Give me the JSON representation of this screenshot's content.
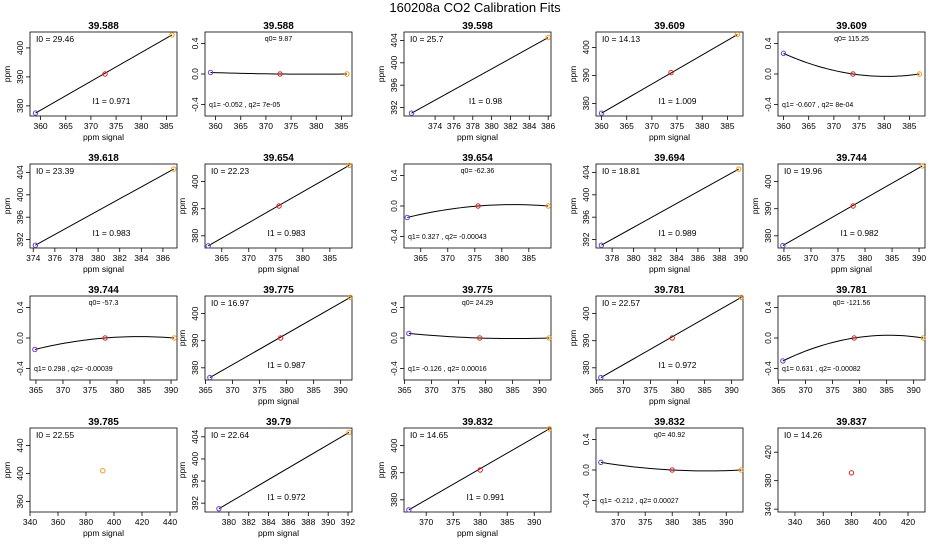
{
  "title": "160208a   CO2 Calibration Fits",
  "colors": {
    "axis": "#000000",
    "line": "#000000",
    "low": "#6a3fcf",
    "mid": "#e0201c",
    "high": "#f09a1a"
  },
  "chart_data": [
    {
      "type": "line",
      "panel_title": "39.588",
      "xlabel": "ppm signal",
      "ylabel": "ppm",
      "fit": "linear",
      "xlim": [
        357.9,
        387.1
      ],
      "ylim": [
        376.5,
        405.5
      ],
      "xticks": [
        "360",
        "365",
        "370",
        "375",
        "380",
        "385"
      ],
      "yticks": [
        "380",
        "390",
        "400"
      ],
      "points": [
        {
          "x": 359.0,
          "y": 377.5,
          "role": "low"
        },
        {
          "x": 372.8,
          "y": 391.0,
          "role": "mid"
        },
        {
          "x": 386.1,
          "y": 404.5,
          "role": "high"
        }
      ],
      "annotations": [
        {
          "text": "I0 =  29.46",
          "pos": "top-left"
        },
        {
          "text": "I1 =  0.971",
          "pos": "bottom-center"
        }
      ]
    },
    {
      "type": "line",
      "panel_title": "39.588",
      "xlabel": "",
      "ylabel": "",
      "fit": "curve",
      "xlim": [
        357.9,
        387.1
      ],
      "ylim": [
        -0.55,
        0.55
      ],
      "xticks": [
        "360",
        "365",
        "370",
        "375",
        "380",
        "385"
      ],
      "yticks": [
        "-0.4",
        "0.0",
        "0.4"
      ],
      "points": [
        {
          "x": 359.0,
          "y": 0.02,
          "role": "low"
        },
        {
          "x": 372.8,
          "y": 0.0,
          "role": "mid"
        },
        {
          "x": 386.1,
          "y": 0.0,
          "role": "high"
        }
      ],
      "annotations": [
        {
          "text": "q0=  9.87",
          "pos": "top-center"
        },
        {
          "text": "q1=  -0.052  ,  q2=  7e-05",
          "pos": "bottom-left"
        }
      ]
    },
    {
      "type": "line",
      "panel_title": "39.598",
      "xlabel": "ppm signal",
      "ylabel": "ppm",
      "fit": "linear",
      "xlim": [
        370.7,
        386.3
      ],
      "ylim": [
        390.5,
        405.5
      ],
      "xticks": [
        "374",
        "376",
        "378",
        "380",
        "382",
        "384",
        "386"
      ],
      "yticks": [
        "392",
        "396",
        "400",
        "404"
      ],
      "points": [
        {
          "x": 371.5,
          "y": 391.0,
          "role": "low"
        },
        {
          "x": 386.0,
          "y": 404.5,
          "role": "high"
        }
      ],
      "annotations": [
        {
          "text": "I0 =  25.7",
          "pos": "top-left"
        },
        {
          "text": "I1 =  0.98",
          "pos": "bottom-center"
        }
      ]
    },
    {
      "type": "line",
      "panel_title": "39.609",
      "xlabel": "ppm signal",
      "ylabel": "ppm",
      "fit": "linear",
      "xlim": [
        358.9,
        388.1
      ],
      "ylim": [
        375.5,
        405.5
      ],
      "xticks": [
        "360",
        "365",
        "370",
        "375",
        "380",
        "385"
      ],
      "yticks": [
        "380",
        "390",
        "400"
      ],
      "points": [
        {
          "x": 360.0,
          "y": 376.5,
          "role": "low"
        },
        {
          "x": 373.8,
          "y": 391.0,
          "role": "mid"
        },
        {
          "x": 387.0,
          "y": 404.6,
          "role": "high"
        }
      ],
      "annotations": [
        {
          "text": "I0 =  14.13",
          "pos": "top-left"
        },
        {
          "text": "I1 =  1.009",
          "pos": "bottom-center"
        }
      ]
    },
    {
      "type": "line",
      "panel_title": "39.609",
      "xlabel": "",
      "ylabel": "",
      "fit": "curve",
      "xlim": [
        358.9,
        388.1
      ],
      "ylim": [
        -0.55,
        0.55
      ],
      "xticks": [
        "360",
        "365",
        "370",
        "375",
        "380",
        "385"
      ],
      "yticks": [
        "-0.4",
        "0.0",
        "0.4"
      ],
      "points": [
        {
          "x": 360.0,
          "y": 0.27,
          "role": "low"
        },
        {
          "x": 373.8,
          "y": 0.0,
          "role": "mid"
        },
        {
          "x": 387.0,
          "y": 0.0,
          "role": "high"
        }
      ],
      "annotations": [
        {
          "text": "q0=  115.25",
          "pos": "top-center"
        },
        {
          "text": "q1=  -0.607  ,  q2=  8e-04",
          "pos": "bottom-left"
        }
      ]
    },
    {
      "type": "line",
      "panel_title": "39.618",
      "xlabel": "ppm signal",
      "ylabel": "ppm",
      "fit": "linear",
      "xlim": [
        373.7,
        387.3
      ],
      "ylim": [
        390.5,
        405.5
      ],
      "xticks": [
        "374",
        "376",
        "378",
        "380",
        "382",
        "384",
        "386"
      ],
      "yticks": [
        "392",
        "396",
        "400",
        "404"
      ],
      "points": [
        {
          "x": 374.2,
          "y": 391.0,
          "role": "low"
        },
        {
          "x": 387.0,
          "y": 404.6,
          "role": "high"
        }
      ],
      "annotations": [
        {
          "text": "I0 =  23.39",
          "pos": "top-left"
        },
        {
          "text": "I1 =  0.983",
          "pos": "bottom-center"
        }
      ]
    },
    {
      "type": "line",
      "panel_title": "39.654",
      "xlabel": "ppm signal",
      "ylabel": "ppm",
      "fit": "linear",
      "xlim": [
        361.9,
        389.1
      ],
      "ylim": [
        375.5,
        406.5
      ],
      "xticks": [
        "365",
        "370",
        "375",
        "380",
        "385"
      ],
      "yticks": [
        "380",
        "390",
        "400"
      ],
      "points": [
        {
          "x": 362.5,
          "y": 376.3,
          "role": "low"
        },
        {
          "x": 375.6,
          "y": 391.0,
          "role": "mid"
        },
        {
          "x": 388.6,
          "y": 406.0,
          "role": "high"
        }
      ],
      "annotations": [
        {
          "text": "I0 =  22.23",
          "pos": "top-left"
        },
        {
          "text": "I1 =  0.983",
          "pos": "bottom-center"
        }
      ]
    },
    {
      "type": "line",
      "panel_title": "39.654",
      "xlabel": "",
      "ylabel": "",
      "fit": "curve",
      "xlim": [
        361.9,
        389.1
      ],
      "ylim": [
        -0.55,
        0.55
      ],
      "xticks": [
        "365",
        "370",
        "375",
        "380",
        "385"
      ],
      "yticks": [
        "-0.4",
        "0.0",
        "0.4"
      ],
      "points": [
        {
          "x": 362.5,
          "y": -0.15,
          "role": "low"
        },
        {
          "x": 375.6,
          "y": 0.0,
          "role": "mid"
        },
        {
          "x": 388.6,
          "y": 0.0,
          "role": "high"
        }
      ],
      "annotations": [
        {
          "text": "q0=  -62.36",
          "pos": "top-center"
        },
        {
          "text": "q1=  0.327  ,  q2=  -0.00043",
          "pos": "bottom-left"
        }
      ]
    },
    {
      "type": "line",
      "panel_title": "39.694",
      "xlabel": "ppm signal",
      "ylabel": "ppm",
      "fit": "linear",
      "xlim": [
        376.5,
        390.2
      ],
      "ylim": [
        390.5,
        405.5
      ],
      "xticks": [
        "378",
        "380",
        "382",
        "384",
        "386",
        "388",
        "390"
      ],
      "yticks": [
        "392",
        "396",
        "400",
        "404"
      ],
      "points": [
        {
          "x": 377.0,
          "y": 391.0,
          "role": "low"
        },
        {
          "x": 389.8,
          "y": 404.6,
          "role": "high"
        }
      ],
      "annotations": [
        {
          "text": "I0 =  18.81",
          "pos": "top-left"
        },
        {
          "text": "I1 =  0.989",
          "pos": "bottom-center"
        }
      ]
    },
    {
      "type": "line",
      "panel_title": "39.744",
      "xlabel": "ppm signal",
      "ylabel": "ppm",
      "fit": "linear",
      "xlim": [
        363.9,
        391.1
      ],
      "ylim": [
        375.5,
        406.5
      ],
      "xticks": [
        "365",
        "370",
        "375",
        "380",
        "385",
        "390"
      ],
      "yticks": [
        "380",
        "390",
        "400"
      ],
      "points": [
        {
          "x": 364.8,
          "y": 376.4,
          "role": "low"
        },
        {
          "x": 377.8,
          "y": 391.0,
          "role": "mid"
        },
        {
          "x": 390.6,
          "y": 405.8,
          "role": "high"
        }
      ],
      "annotations": [
        {
          "text": "I0 =  19.96",
          "pos": "top-left"
        },
        {
          "text": "I1 =  0.982",
          "pos": "bottom-center"
        }
      ]
    },
    {
      "type": "line",
      "panel_title": "39.744",
      "xlabel": "",
      "ylabel": "",
      "fit": "curve",
      "xlim": [
        363.9,
        391.1
      ],
      "ylim": [
        -0.55,
        0.55
      ],
      "xticks": [
        "365",
        "370",
        "375",
        "380",
        "385",
        "390"
      ],
      "yticks": [
        "-0.4",
        "0.0",
        "0.4"
      ],
      "points": [
        {
          "x": 364.8,
          "y": -0.15,
          "role": "low"
        },
        {
          "x": 377.8,
          "y": 0.0,
          "role": "mid"
        },
        {
          "x": 390.6,
          "y": 0.0,
          "role": "high"
        }
      ],
      "annotations": [
        {
          "text": "q0=  -57.3",
          "pos": "top-center"
        },
        {
          "text": "q1=  0.298  ,  q2=  -0.00039",
          "pos": "bottom-left"
        }
      ]
    },
    {
      "type": "line",
      "panel_title": "39.775",
      "xlabel": "ppm signal",
      "ylabel": "ppm",
      "fit": "linear",
      "xlim": [
        364.9,
        392.1
      ],
      "ylim": [
        375.5,
        406.5
      ],
      "xticks": [
        "365",
        "370",
        "375",
        "380",
        "385",
        "390"
      ],
      "yticks": [
        "380",
        "390",
        "400"
      ],
      "points": [
        {
          "x": 365.8,
          "y": 376.4,
          "role": "low"
        },
        {
          "x": 378.9,
          "y": 391.0,
          "role": "mid"
        },
        {
          "x": 391.8,
          "y": 406.0,
          "role": "high"
        }
      ],
      "annotations": [
        {
          "text": "I0 =  16.97",
          "pos": "top-left"
        },
        {
          "text": "I1 =  0.987",
          "pos": "bottom-center"
        }
      ]
    },
    {
      "type": "line",
      "panel_title": "39.775",
      "xlabel": "",
      "ylabel": "",
      "fit": "curve",
      "xlim": [
        364.9,
        392.1
      ],
      "ylim": [
        -0.55,
        0.55
      ],
      "xticks": [
        "365",
        "370",
        "375",
        "380",
        "385",
        "390"
      ],
      "yticks": [
        "-0.4",
        "0.0",
        "0.4"
      ],
      "points": [
        {
          "x": 365.8,
          "y": 0.06,
          "role": "low"
        },
        {
          "x": 378.9,
          "y": 0.0,
          "role": "mid"
        },
        {
          "x": 391.8,
          "y": 0.0,
          "role": "high"
        }
      ],
      "annotations": [
        {
          "text": "q0=  24.29",
          "pos": "top-center"
        },
        {
          "text": "q1=  -0.126  ,  q2=  0.00016",
          "pos": "bottom-left"
        }
      ]
    },
    {
      "type": "line",
      "panel_title": "39.781",
      "xlabel": "ppm signal",
      "ylabel": "ppm",
      "fit": "linear",
      "xlim": [
        364.9,
        392.1
      ],
      "ylim": [
        375.5,
        406.5
      ],
      "xticks": [
        "365",
        "370",
        "375",
        "380",
        "385",
        "390"
      ],
      "yticks": [
        "380",
        "390",
        "400"
      ],
      "points": [
        {
          "x": 365.8,
          "y": 376.4,
          "role": "low"
        },
        {
          "x": 379.0,
          "y": 391.0,
          "role": "mid"
        },
        {
          "x": 391.8,
          "y": 406.0,
          "role": "high"
        }
      ],
      "annotations": [
        {
          "text": "I0 =  22.57",
          "pos": "top-left"
        },
        {
          "text": "I1 =  0.972",
          "pos": "bottom-center"
        }
      ]
    },
    {
      "type": "line",
      "panel_title": "39.781",
      "xlabel": "",
      "ylabel": "",
      "fit": "curve",
      "xlim": [
        364.9,
        392.1
      ],
      "ylim": [
        -0.55,
        0.55
      ],
      "xticks": [
        "365",
        "370",
        "375",
        "380",
        "385",
        "390"
      ],
      "yticks": [
        "-0.4",
        "0.0",
        "0.4"
      ],
      "points": [
        {
          "x": 365.8,
          "y": -0.3,
          "role": "low"
        },
        {
          "x": 379.0,
          "y": 0.0,
          "role": "mid"
        },
        {
          "x": 391.8,
          "y": 0.0,
          "role": "high"
        }
      ],
      "annotations": [
        {
          "text": "q0=  -121.56",
          "pos": "top-center"
        },
        {
          "text": "q1=  0.631  ,  q2=  -0.00082",
          "pos": "bottom-left"
        }
      ]
    },
    {
      "type": "scatter",
      "panel_title": "39.785",
      "xlabel": "ppm signal",
      "ylabel": "ppm",
      "fit": "none",
      "xlim": [
        340,
        445
      ],
      "ylim": [
        345,
        465
      ],
      "xticks": [
        "340",
        "360",
        "380",
        "400",
        "420",
        "440"
      ],
      "yticks": [
        "360",
        "400",
        "440"
      ],
      "points": [
        {
          "x": 392,
          "y": 404,
          "role": "high"
        }
      ],
      "annotations": [
        {
          "text": "I0 =  22.55",
          "pos": "top-left"
        }
      ]
    },
    {
      "type": "line",
      "panel_title": "39.79",
      "xlabel": "ppm signal",
      "ylabel": "ppm",
      "fit": "linear",
      "xlim": [
        377.6,
        392.4
      ],
      "ylim": [
        390.4,
        405.6
      ],
      "xticks": [
        "380",
        "382",
        "384",
        "386",
        "388",
        "390",
        "392"
      ],
      "yticks": [
        "392",
        "396",
        "400",
        "404"
      ],
      "points": [
        {
          "x": 379.0,
          "y": 391.0,
          "role": "low"
        },
        {
          "x": 392.1,
          "y": 404.8,
          "role": "high"
        }
      ],
      "annotations": [
        {
          "text": "I0 =  22.64",
          "pos": "top-left"
        },
        {
          "text": "I1 =  0.972",
          "pos": "bottom-center"
        }
      ]
    },
    {
      "type": "line",
      "panel_title": "39.832",
      "xlabel": "ppm signal",
      "ylabel": "ppm",
      "fit": "linear",
      "xlim": [
        365.9,
        393.1
      ],
      "ylim": [
        375.5,
        406.5
      ],
      "xticks": [
        "370",
        "375",
        "380",
        "385",
        "390"
      ],
      "yticks": [
        "380",
        "390",
        "400"
      ],
      "points": [
        {
          "x": 366.8,
          "y": 376.3,
          "role": "low"
        },
        {
          "x": 380.0,
          "y": 391.0,
          "role": "mid"
        },
        {
          "x": 392.8,
          "y": 406.2,
          "role": "high"
        }
      ],
      "annotations": [
        {
          "text": "I0 =  14.65",
          "pos": "top-left"
        },
        {
          "text": "I1 =  0.991",
          "pos": "bottom-center"
        }
      ]
    },
    {
      "type": "line",
      "panel_title": "39.832",
      "xlabel": "",
      "ylabel": "",
      "fit": "curve",
      "xlim": [
        365.9,
        393.1
      ],
      "ylim": [
        -0.55,
        0.55
      ],
      "xticks": [
        "370",
        "375",
        "380",
        "385",
        "390"
      ],
      "yticks": [
        "-0.4",
        "0.0",
        "0.4"
      ],
      "points": [
        {
          "x": 366.8,
          "y": 0.1,
          "role": "low"
        },
        {
          "x": 380.0,
          "y": 0.0,
          "role": "mid"
        },
        {
          "x": 392.8,
          "y": 0.0,
          "role": "high"
        }
      ],
      "annotations": [
        {
          "text": "q0=  40.92",
          "pos": "top-center"
        },
        {
          "text": "q1=  -0.212  ,  q2=  0.00027",
          "pos": "bottom-left"
        }
      ]
    },
    {
      "type": "scatter",
      "panel_title": "39.837",
      "xlabel": "",
      "ylabel": "",
      "fit": "none",
      "xlim": [
        328,
        432
      ],
      "ylim": [
        336,
        454
      ],
      "xticks": [
        "340",
        "360",
        "380",
        "400",
        "420"
      ],
      "yticks": [
        "340",
        "380",
        "420"
      ],
      "points": [
        {
          "x": 380,
          "y": 391,
          "role": "mid"
        }
      ],
      "annotations": [
        {
          "text": "I0 =  14.26",
          "pos": "top-left"
        }
      ]
    }
  ]
}
